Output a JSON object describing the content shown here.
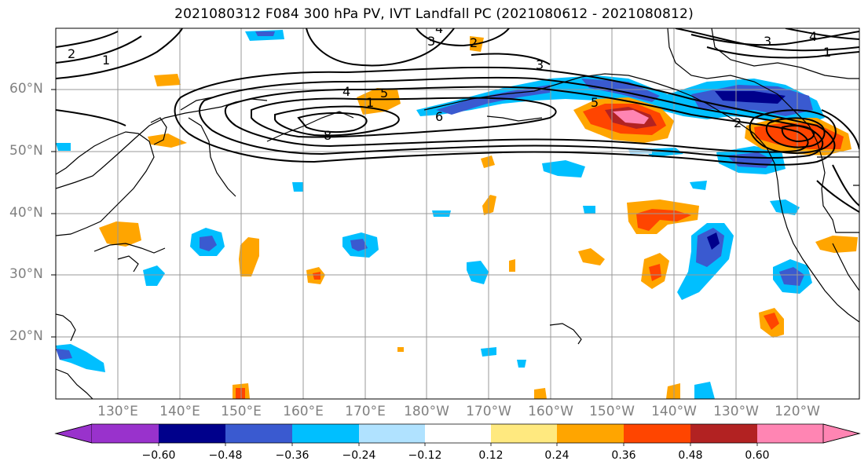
{
  "title": "2021080312 F084 300 hPa PV, IVT Landfall PC (2021080612 - 2021080812)",
  "lat_labels": [
    "60°N",
    "50°N",
    "40°N",
    "30°N",
    "20°N"
  ],
  "lon_labels": [
    "130°E",
    "140°E",
    "150°E",
    "160°E",
    "170°E",
    "180°W",
    "170°W",
    "160°W",
    "150°W",
    "140°W",
    "130°W",
    "120°W"
  ],
  "contour_labels": [
    "2",
    "1",
    "3",
    "4",
    "2",
    "3",
    "1",
    "4",
    "5",
    "6",
    "8",
    "5",
    "4",
    "3",
    "2",
    "1"
  ],
  "colorbar": {
    "labels": [
      "−0.60",
      "−0.48",
      "−0.36",
      "−0.24",
      "−0.12",
      "0.12",
      "0.24",
      "0.36",
      "0.48",
      "0.60"
    ],
    "colors": [
      "#9932CC",
      "#00008B",
      "#3A5AD0",
      "#00BFFF",
      "#B0E2FF",
      "#FFFFFF",
      "#FFE97F",
      "#FFA500",
      "#FF4500",
      "#B22222",
      "#FF85B3"
    ]
  },
  "palette": {
    "land": "#000000",
    "grid": "#999999",
    "contour": "#000000"
  }
}
